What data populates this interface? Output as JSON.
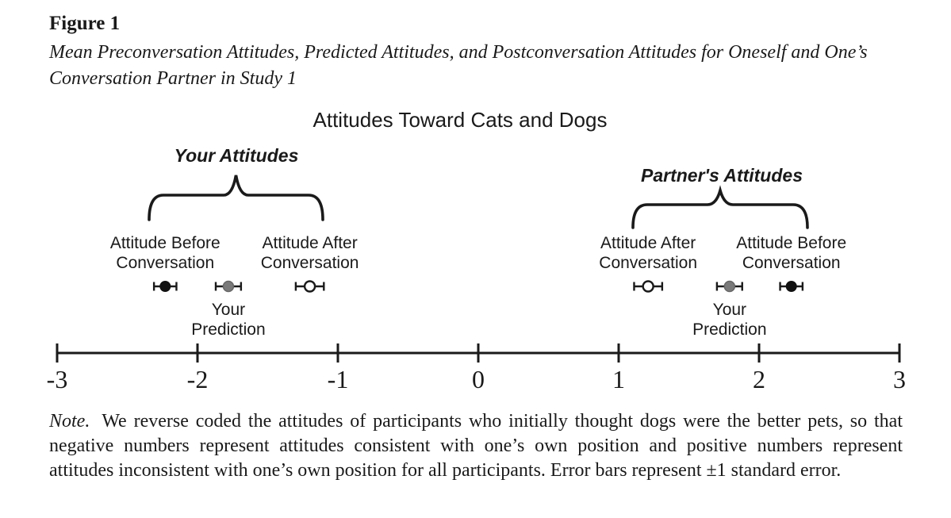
{
  "figure": {
    "label": "Figure 1",
    "caption": "Mean Preconversation Attitudes, Predicted Attitudes, and Postconversation Attitudes for Oneself and One’s Conversation Partner in Study 1"
  },
  "chart_data": {
    "type": "scatter",
    "title": "Attitudes Toward Cats and Dogs",
    "axis": {
      "min": -3,
      "max": 3,
      "tick_values": [
        -3,
        -2,
        -1,
        0,
        1,
        2,
        3
      ],
      "tick_labels": [
        "-3",
        "-2",
        "-1",
        "0",
        "1",
        "2",
        "3"
      ]
    },
    "grid": false,
    "legend_position": "none",
    "groups": [
      {
        "name": "Your Attitudes",
        "brace_range": [
          -2.35,
          -1.11
        ]
      },
      {
        "name": "Partner's Attitudes",
        "brace_range": [
          1.1,
          2.35
        ]
      }
    ],
    "points": [
      {
        "group": "Your Attitudes",
        "label": "Attitude Before Conversation",
        "label_position": "above",
        "marker": "filled-black",
        "value": -2.23,
        "se": 0.08
      },
      {
        "group": "Your Attitudes",
        "label": "Your Prediction",
        "label_position": "below",
        "marker": "filled-gray",
        "value": -1.78,
        "se": 0.09
      },
      {
        "group": "Your Attitudes",
        "label": "Attitude After Conversation",
        "label_position": "above",
        "marker": "open",
        "value": -1.2,
        "se": 0.1
      },
      {
        "group": "Partner's Attitudes",
        "label": "Attitude After Conversation",
        "label_position": "above",
        "marker": "open",
        "value": 1.21,
        "se": 0.1
      },
      {
        "group": "Partner's Attitudes",
        "label": "Your Prediction",
        "label_position": "below",
        "marker": "filled-gray",
        "value": 1.79,
        "se": 0.09
      },
      {
        "group": "Partner's Attitudes",
        "label": "Attitude Before Conversation",
        "label_position": "above",
        "marker": "filled-black",
        "value": 2.23,
        "se": 0.08
      }
    ],
    "error_bars": "±1 standard error"
  },
  "note": {
    "label": "Note.",
    "text": "We reverse coded the attitudes of participants who initially thought dogs were the better pets, so that negative numbers represent attitudes consistent with one’s own position and positive numbers represent attitudes inconsistent with one’s own position for all participants. Error bars represent ±1 standard error."
  },
  "colors": {
    "line": "#1a1a1a",
    "text": "#1a1a1a",
    "marker_black": "#111111",
    "marker_gray": "#7a7a7a",
    "marker_open_fill": "#ffffff",
    "background": "#ffffff"
  }
}
